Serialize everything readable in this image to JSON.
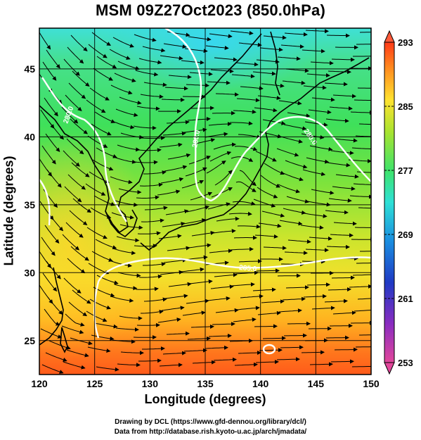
{
  "title": "MSM 09Z27Oct2023 (850.0hPa)",
  "axes": {
    "xlabel": "Longitude (degrees)",
    "ylabel": "Latitude  (degrees)",
    "xticks": [
      "120",
      "125",
      "130",
      "135",
      "140",
      "145",
      "150"
    ],
    "yticks": [
      "25",
      "30",
      "35",
      "40",
      "45"
    ],
    "xrange": [
      120,
      150
    ],
    "yrange": [
      22.5,
      48
    ]
  },
  "colorbar": {
    "ticks": [
      "293",
      "285",
      "277",
      "269",
      "261",
      "253"
    ],
    "range": [
      253,
      293
    ],
    "colors": [
      "#e2479b",
      "#6a1fb0",
      "#1f3ac4",
      "#1aa6e0",
      "#2ee0c8",
      "#3fe36a",
      "#a8e330",
      "#ffe230",
      "#ff9a1f",
      "#ff3a18"
    ]
  },
  "contour_labels": [
    "280.0",
    "280.0",
    "280.0",
    "285.0"
  ],
  "map_features": {
    "grid": true,
    "coastlines": true,
    "streamlines": true,
    "contour_color": "#ffffff",
    "low_center_near": "138E 38N"
  },
  "credits": {
    "line1": "Drawing by DCL (https://www.gfd-dennou.org/library/dcl/)",
    "line2": "Data from http://database.rish.kyoto-u.ac.jp/arch/jmadata/"
  }
}
